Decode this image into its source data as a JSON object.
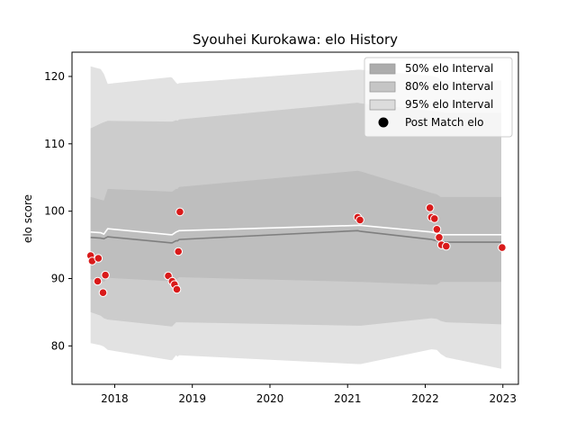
{
  "chart_data": {
    "type": "area",
    "title": "Syouhei Kurokawa: elo History",
    "xlabel": "",
    "ylabel": "elo score",
    "xlim": [
      2017.45,
      2023.2
    ],
    "ylim": [
      74.3,
      123.6
    ],
    "xticks": [
      2018,
      2019,
      2020,
      2021,
      2022,
      2023
    ],
    "yticks": [
      80,
      90,
      100,
      110,
      120
    ],
    "grid": false,
    "legend_position": "top-right",
    "colors": {
      "band95": "#e2e2e2",
      "band80": "#cccccc",
      "band50": "#bebebe",
      "lower_line": "#7f7f7f",
      "upper_line": "#ffffff",
      "points": "#d91a1a",
      "point_edge": "#ffffff"
    },
    "legend": [
      {
        "label": "50% elo Interval",
        "kind": "band50"
      },
      {
        "label": "80% elo Interval",
        "kind": "band80"
      },
      {
        "label": "95% elo Interval",
        "kind": "band95"
      },
      {
        "label": "Post Match elo",
        "kind": "point"
      }
    ],
    "bands": {
      "x": [
        2017.69,
        2017.82,
        2017.86,
        2017.91,
        2018.72,
        2018.74,
        2018.79,
        2018.81,
        2018.83,
        2021.13,
        2021.17,
        2022.08,
        2022.15,
        2022.2,
        2022.27,
        2022.98
      ],
      "band95_lower": [
        80.4,
        80.1,
        79.9,
        79.4,
        77.9,
        77.9,
        78.6,
        78.4,
        78.6,
        77.3,
        77.3,
        79.5,
        79.4,
        78.8,
        78.3,
        76.6
      ],
      "band95_upper": [
        121.5,
        121.1,
        120.4,
        118.9,
        119.9,
        119.8,
        119.1,
        118.9,
        119.0,
        121.0,
        121.0,
        120.1,
        119.9,
        119.5,
        119.4,
        119.4
      ],
      "band80_lower": [
        85.0,
        84.5,
        84.1,
        83.9,
        82.9,
        82.9,
        83.5,
        83.5,
        83.5,
        83.0,
        83.0,
        84.1,
        84.0,
        83.7,
        83.5,
        83.2
      ],
      "band80_upper": [
        112.3,
        113.0,
        113.2,
        113.4,
        113.3,
        113.3,
        113.5,
        113.4,
        113.6,
        116.1,
        116.0,
        114.9,
        114.8,
        114.7,
        114.6,
        114.6
      ],
      "band50_lower": [
        89.9,
        89.9,
        89.5,
        90.1,
        89.6,
        89.7,
        89.9,
        90.0,
        90.2,
        89.5,
        89.5,
        89.1,
        89.1,
        89.5,
        89.5,
        89.5
      ],
      "band50_upper": [
        102.1,
        101.7,
        101.6,
        103.3,
        102.9,
        102.9,
        103.3,
        103.3,
        103.6,
        106.0,
        105.9,
        102.7,
        102.5,
        102.1,
        102.1,
        102.1
      ],
      "lower_line": [
        96.1,
        96.0,
        95.9,
        96.2,
        95.3,
        95.3,
        95.6,
        95.6,
        95.8,
        97.1,
        97.0,
        95.8,
        95.6,
        95.4,
        95.4,
        95.4
      ],
      "upper_line": [
        96.9,
        96.8,
        96.6,
        97.4,
        96.5,
        96.5,
        96.9,
        97.0,
        97.1,
        97.9,
        97.9,
        96.9,
        96.7,
        96.5,
        96.5,
        96.5
      ]
    },
    "series": [
      {
        "name": "Post Match elo",
        "points": [
          {
            "x": 2017.69,
            "y": 93.4
          },
          {
            "x": 2017.71,
            "y": 92.6
          },
          {
            "x": 2017.79,
            "y": 93.0
          },
          {
            "x": 2017.78,
            "y": 89.6
          },
          {
            "x": 2017.85,
            "y": 87.9
          },
          {
            "x": 2017.88,
            "y": 90.5
          },
          {
            "x": 2018.69,
            "y": 90.4
          },
          {
            "x": 2018.74,
            "y": 89.6
          },
          {
            "x": 2018.77,
            "y": 89.1
          },
          {
            "x": 2018.8,
            "y": 88.4
          },
          {
            "x": 2018.82,
            "y": 94.0
          },
          {
            "x": 2018.84,
            "y": 99.9
          },
          {
            "x": 2021.13,
            "y": 99.1
          },
          {
            "x": 2021.16,
            "y": 98.7
          },
          {
            "x": 2022.06,
            "y": 100.5
          },
          {
            "x": 2022.08,
            "y": 99.1
          },
          {
            "x": 2022.12,
            "y": 98.9
          },
          {
            "x": 2022.15,
            "y": 97.3
          },
          {
            "x": 2022.18,
            "y": 96.1
          },
          {
            "x": 2022.21,
            "y": 95.0
          },
          {
            "x": 2022.27,
            "y": 94.8
          },
          {
            "x": 2022.99,
            "y": 94.6
          }
        ]
      }
    ]
  }
}
